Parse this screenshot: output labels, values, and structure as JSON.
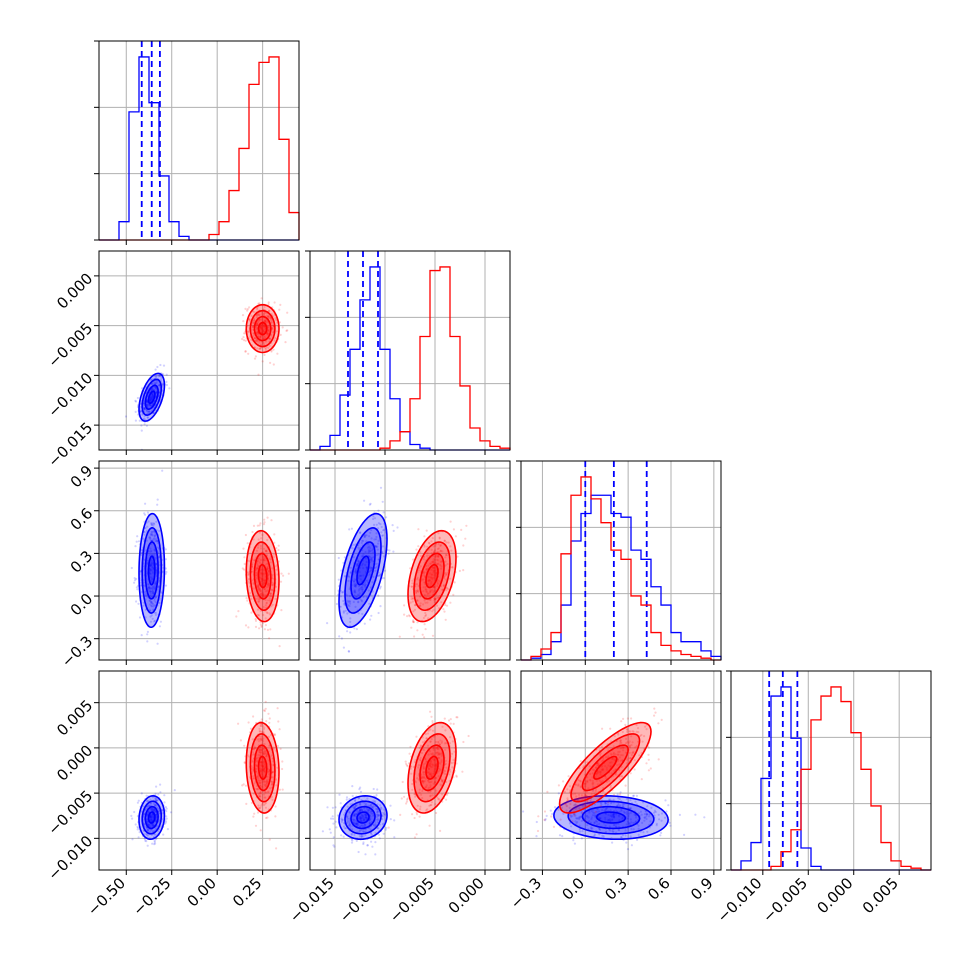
{
  "chart_data": {
    "type": "corner",
    "grid": true,
    "colors": {
      "series_a": "#0000ff",
      "series_b": "#ff0000"
    },
    "parameters": [
      {
        "index": 0,
        "range": [
          -0.65,
          0.45
        ],
        "ticks": [
          -0.5,
          -0.25,
          0.0,
          0.25
        ],
        "tick_labels": [
          "−0.50",
          "−0.25",
          "0.00",
          "0.25"
        ]
      },
      {
        "index": 1,
        "range": [
          -0.0175,
          0.0025
        ],
        "ticks": [
          -0.015,
          -0.01,
          -0.005,
          0.0
        ],
        "tick_labels": [
          "−0.015",
          "−0.010",
          "−0.005",
          "0.000"
        ]
      },
      {
        "index": 2,
        "range": [
          -0.45,
          0.95
        ],
        "ticks": [
          -0.3,
          0.0,
          0.3,
          0.6,
          0.9
        ],
        "tick_labels": [
          "−0.3",
          "0.0",
          "0.3",
          "0.6",
          "0.9"
        ]
      },
      {
        "index": 3,
        "range": [
          -0.0135,
          0.0085
        ],
        "ticks": [
          -0.01,
          -0.005,
          0.0,
          0.005
        ],
        "tick_labels": [
          "−0.010",
          "−0.005",
          "0.000",
          "0.005"
        ]
      }
    ],
    "series": [
      {
        "color": "#0000ff",
        "means": [
          -0.36,
          -0.0122,
          0.18,
          -0.0077
        ],
        "sds": [
          0.035,
          0.0012,
          0.2,
          0.0012
        ],
        "corr": [
          [
            0,
            1,
            0.5
          ],
          [
            0,
            2,
            0.05
          ],
          [
            0,
            3,
            0.1
          ],
          [
            1,
            2,
            0.55
          ],
          [
            1,
            3,
            0.1
          ],
          [
            2,
            3,
            -0.1
          ]
        ],
        "quantiles": [
          [
            -0.415,
            -0.36,
            -0.315
          ],
          [
            -0.0137,
            -0.0122,
            -0.0107
          ],
          [
            0.0,
            0.2,
            0.43
          ],
          [
            -0.0093,
            -0.0078,
            -0.0062
          ]
        ],
        "histograms": [
          {
            "edges_from": -0.65,
            "edges_to": 0.45,
            "counts": [
              0,
              0,
              0.1,
              0.7,
              1.0,
              0.75,
              0.35,
              0.1,
              0.02,
              0,
              0,
              0,
              0,
              0,
              0,
              0,
              0,
              0,
              0,
              0
            ]
          },
          {
            "edges_from": -0.0175,
            "edges_to": 0.0025,
            "counts": [
              0,
              0.02,
              0.08,
              0.3,
              0.55,
              0.82,
              1.0,
              0.55,
              0.28,
              0.1,
              0.03,
              0.01,
              0,
              0,
              0,
              0,
              0,
              0,
              0,
              0
            ]
          },
          {
            "edges_from": -0.45,
            "edges_to": 0.95,
            "counts": [
              0,
              0.01,
              0.03,
              0.1,
              0.3,
              0.65,
              0.8,
              0.9,
              0.9,
              0.8,
              0.78,
              0.6,
              0.55,
              0.4,
              0.3,
              0.15,
              0.1,
              0.1,
              0.05,
              0.02
            ]
          },
          {
            "edges_from": -0.0135,
            "edges_to": 0.0085,
            "counts": [
              0,
              0.05,
              0.15,
              0.5,
              0.95,
              1.0,
              0.72,
              0.12,
              0.02,
              0,
              0,
              0,
              0,
              0,
              0,
              0,
              0,
              0,
              0,
              0
            ]
          }
        ]
      },
      {
        "color": "#ff0000",
        "means": [
          0.25,
          -0.0053,
          0.14,
          -0.0022
        ],
        "sds": [
          0.045,
          0.0012,
          0.16,
          0.0025
        ],
        "corr": [
          [
            0,
            1,
            0.0
          ],
          [
            0,
            2,
            -0.1
          ],
          [
            0,
            3,
            -0.1
          ],
          [
            1,
            2,
            0.4
          ],
          [
            1,
            3,
            0.35
          ],
          [
            2,
            3,
            0.8
          ]
        ],
        "quantiles": null,
        "histograms": [
          {
            "edges_from": -0.65,
            "edges_to": 0.45,
            "counts": [
              0,
              0,
              0,
              0,
              0,
              0,
              0,
              0,
              0,
              0,
              0,
              0.03,
              0.1,
              0.27,
              0.5,
              0.85,
              0.97,
              1.0,
              0.55,
              0.15
            ]
          },
          {
            "edges_from": -0.0175,
            "edges_to": 0.0025,
            "counts": [
              0,
              0,
              0,
              0,
              0,
              0,
              0,
              0.01,
              0.05,
              0.1,
              0.28,
              0.62,
              0.98,
              1.0,
              0.62,
              0.35,
              0.12,
              0.05,
              0.02,
              0.01
            ]
          },
          {
            "edges_from": -0.45,
            "edges_to": 0.95,
            "counts": [
              0,
              0.02,
              0.06,
              0.15,
              0.58,
              0.9,
              1.0,
              0.88,
              0.75,
              0.6,
              0.55,
              0.35,
              0.3,
              0.15,
              0.08,
              0.05,
              0.03,
              0.02,
              0.01,
              0
            ]
          },
          {
            "edges_from": -0.0135,
            "edges_to": 0.0085,
            "counts": [
              0,
              0,
              0,
              0,
              0.02,
              0.1,
              0.22,
              0.55,
              0.82,
              0.95,
              1.0,
              0.92,
              0.75,
              0.55,
              0.35,
              0.15,
              0.05,
              0.02,
              0.01,
              0
            ]
          }
        ]
      }
    ]
  }
}
